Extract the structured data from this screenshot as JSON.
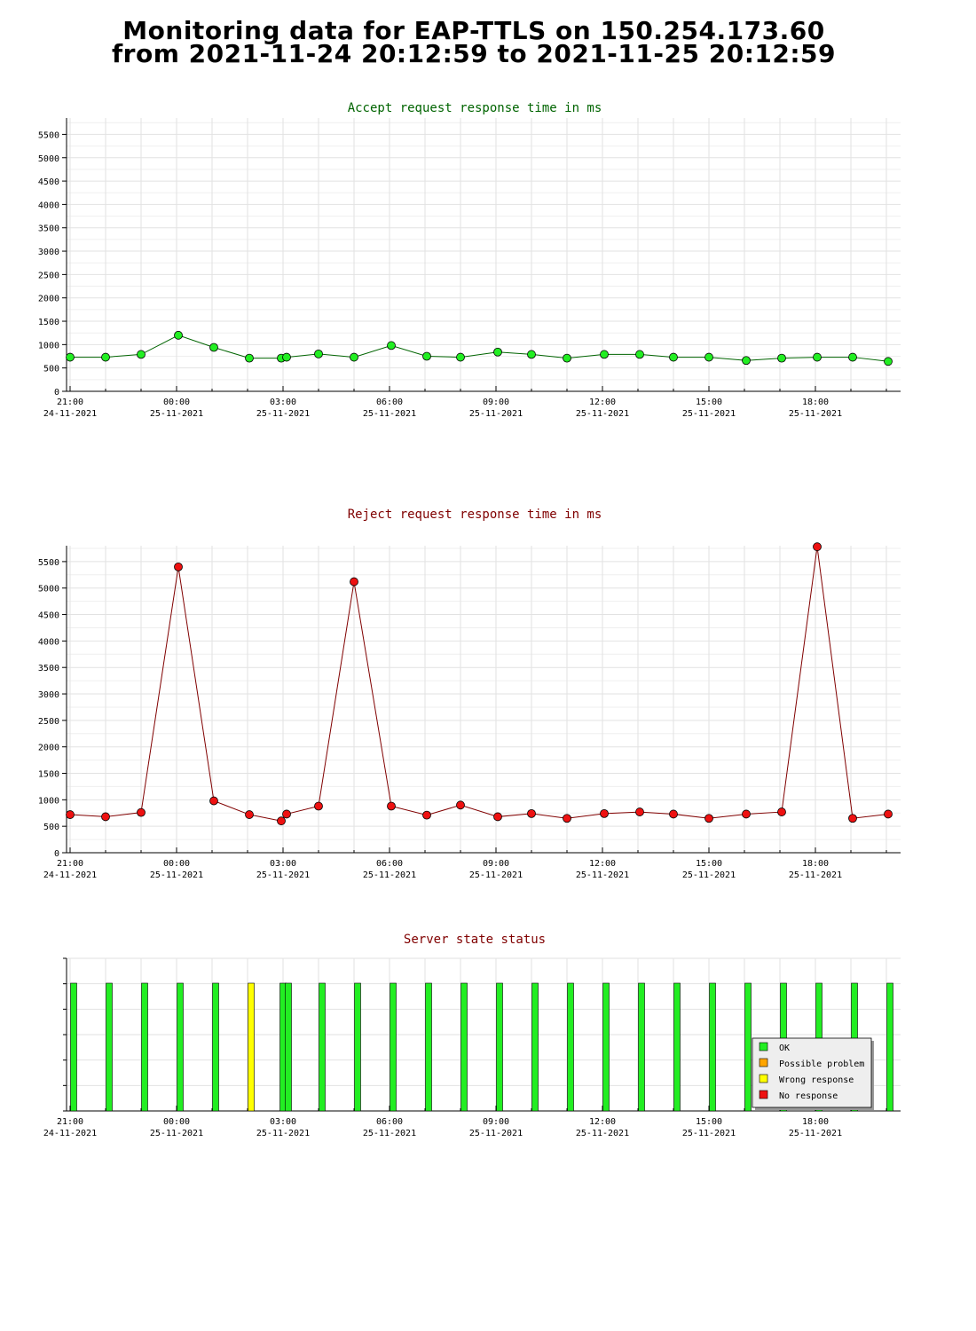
{
  "page": {
    "title_line1": "Monitoring data for EAP-TTLS on 150.254.173.60",
    "title_line2": "from 2021-11-24 20:12:59 to 2021-11-25 20:12:59"
  },
  "x_axis": {
    "tick_hours": [
      21,
      24,
      27,
      30,
      33,
      36,
      39,
      42
    ],
    "tick_labels": [
      [
        "21:00",
        "24-11-2021"
      ],
      [
        "00:00",
        "25-11-2021"
      ],
      [
        "03:00",
        "25-11-2021"
      ],
      [
        "06:00",
        "25-11-2021"
      ],
      [
        "09:00",
        "25-11-2021"
      ],
      [
        "12:00",
        "25-11-2021"
      ],
      [
        "15:00",
        "25-11-2021"
      ],
      [
        "18:00",
        "25-11-2021"
      ]
    ]
  },
  "chart_data": [
    {
      "id": "accept",
      "type": "line",
      "title": "Accept request response time in ms",
      "title_color": "#006400",
      "line_color": "#006400",
      "marker_color": "#22ee22",
      "xlim_hours": [
        20.9,
        44.4
      ],
      "ylim": [
        0,
        5850
      ],
      "yticks": [
        0,
        500,
        1000,
        1500,
        2000,
        2500,
        3000,
        3500,
        4000,
        4500,
        5000,
        5500
      ],
      "grid": true,
      "x_hours": [
        21.0,
        22.0,
        23.0,
        24.05,
        25.05,
        26.05,
        26.95,
        27.1,
        28.0,
        29.0,
        30.05,
        31.05,
        32.0,
        33.05,
        34.0,
        35.0,
        36.05,
        37.05,
        38.0,
        39.0,
        40.05,
        41.05,
        42.05,
        43.05,
        44.05
      ],
      "y": [
        730,
        730,
        790,
        1200,
        940,
        710,
        710,
        730,
        800,
        730,
        980,
        750,
        730,
        840,
        790,
        710,
        790,
        790,
        730,
        730,
        660,
        710,
        730,
        730,
        640
      ]
    },
    {
      "id": "reject",
      "type": "line",
      "title": "Reject request response time in ms",
      "title_color": "#800000",
      "line_color": "#800000",
      "marker_color": "#ee1111",
      "xlim_hours": [
        20.9,
        44.4
      ],
      "ylim": [
        0,
        5800
      ],
      "yticks": [
        0,
        500,
        1000,
        1500,
        2000,
        2500,
        3000,
        3500,
        4000,
        4500,
        5000,
        5500
      ],
      "grid": true,
      "x_hours": [
        21.0,
        22.0,
        23.0,
        24.05,
        25.05,
        26.05,
        26.95,
        27.1,
        28.0,
        29.0,
        30.05,
        31.05,
        32.0,
        33.05,
        34.0,
        35.0,
        36.05,
        37.05,
        38.0,
        39.0,
        40.05,
        41.05,
        42.05,
        43.05,
        44.05
      ],
      "y": [
        720,
        680,
        760,
        5400,
        980,
        720,
        600,
        730,
        880,
        5120,
        880,
        710,
        900,
        680,
        740,
        650,
        740,
        770,
        730,
        650,
        730,
        770,
        5780,
        650,
        730
      ]
    },
    {
      "id": "status",
      "type": "bar",
      "title": "Server state status",
      "title_color": "#800000",
      "xlim_hours": [
        20.9,
        44.4
      ],
      "grid": true,
      "x_hours": [
        21.1,
        22.1,
        23.1,
        24.1,
        25.1,
        26.1,
        27.0,
        27.15,
        28.1,
        29.1,
        30.1,
        31.1,
        32.1,
        33.1,
        34.1,
        35.1,
        36.1,
        37.1,
        38.1,
        39.1,
        40.1,
        41.1,
        42.1,
        43.1,
        44.1
      ],
      "states": [
        "OK",
        "OK",
        "OK",
        "OK",
        "OK",
        "Wrong response",
        "OK",
        "OK",
        "OK",
        "OK",
        "OK",
        "OK",
        "OK",
        "OK",
        "OK",
        "OK",
        "OK",
        "OK",
        "OK",
        "OK",
        "OK",
        "OK",
        "OK",
        "OK",
        "OK"
      ],
      "legend": [
        {
          "label": "OK",
          "color": "#22ee22"
        },
        {
          "label": "Possible problem",
          "color": "#ffa500"
        },
        {
          "label": "Wrong response",
          "color": "#ffff00"
        },
        {
          "label": "No response",
          "color": "#ee1111"
        }
      ],
      "legend_position": "bottom-right"
    }
  ]
}
